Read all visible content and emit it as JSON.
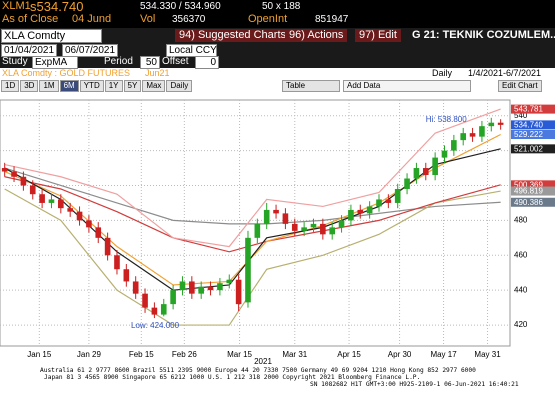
{
  "header": {
    "ticker": "XLM1",
    "last": "s534.740",
    "bid_ask": "534.330 / 534.960",
    "size": "50 x 188",
    "as_of": "As of Close",
    "date": "04 Jund",
    "vol_label": "Vol",
    "vol": "356370",
    "oi_label": "OpenInt",
    "oi": "851947"
  },
  "toolbar": {
    "security": "XLA Comdty",
    "suggested": "94) Suggested Charts",
    "actions": "96) Actions",
    "edit": "97) Edit",
    "page_title": "G 21: TEKNIK COZUMLEM...",
    "start_date": "01/04/2021",
    "end_date": "06/07/2021",
    "currency": "Local CCY",
    "study_label": "Study",
    "study": "ExpMA",
    "period_label": "Period",
    "period": "50",
    "offset_label": "Offset",
    "offset": "0",
    "chart_name": "XLA Comdty : GOLD FUTURES",
    "contract": "Jun21",
    "frequency": "Daily",
    "range": "1/4/2021-6/7/2021",
    "periods": [
      "1D",
      "3D",
      "1M",
      "6M",
      "YTD",
      "1Y",
      "5Y",
      "Max"
    ],
    "freq_button": "Daily",
    "table": "Table",
    "add_data": "Add Data",
    "edit_chart": "Edit Chart"
  },
  "chart_data": {
    "type": "candlestick",
    "up_color": "#26a426",
    "down_color": "#cc1f1f",
    "grid": true,
    "open": [
      510,
      508,
      505,
      500,
      495,
      490,
      492,
      487,
      485,
      480,
      476,
      470,
      460,
      452,
      445,
      438,
      430,
      426,
      432,
      440,
      445,
      438,
      442,
      440,
      444,
      446,
      433,
      470,
      478,
      486,
      484,
      478,
      474,
      476,
      478,
      472,
      476,
      480,
      486,
      484,
      488,
      492,
      490,
      498,
      504,
      510,
      506,
      516,
      520,
      526,
      530,
      528,
      534,
      536
    ],
    "high": [
      513,
      511,
      508,
      503,
      498,
      495,
      495,
      490,
      488,
      483,
      479,
      473,
      463,
      455,
      448,
      441,
      433,
      435,
      443,
      448,
      448,
      445,
      445,
      447,
      449,
      449,
      474,
      481,
      490,
      489,
      487,
      481,
      479,
      481,
      481,
      479,
      483,
      489,
      489,
      491,
      495,
      495,
      501,
      507,
      513,
      513,
      519,
      523,
      529,
      533,
      533,
      537,
      538.8,
      538
    ],
    "low": [
      505,
      502,
      497,
      492,
      487,
      487,
      484,
      482,
      477,
      473,
      467,
      457,
      449,
      442,
      435,
      427,
      424,
      425,
      429,
      437,
      435,
      435,
      437,
      437,
      441,
      428,
      430,
      467,
      475,
      481,
      475,
      471,
      471,
      473,
      469,
      469,
      473,
      477,
      481,
      481,
      485,
      487,
      487,
      495,
      501,
      503,
      503,
      513,
      517,
      523,
      525,
      525,
      531,
      532
    ],
    "close": [
      508,
      505,
      500,
      495,
      490,
      492,
      487,
      485,
      480,
      476,
      470,
      460,
      452,
      445,
      438,
      430,
      426,
      432,
      440,
      445,
      438,
      442,
      440,
      444,
      446,
      432,
      470,
      478,
      486,
      484,
      478,
      474,
      476,
      478,
      472,
      476,
      480,
      486,
      484,
      488,
      492,
      490,
      498,
      504,
      510,
      506,
      516,
      520,
      526,
      530,
      528,
      534,
      536,
      534.74
    ],
    "lines": [
      {
        "color": "#8c8c8c",
        "x": [
          0,
          6,
          12,
          18,
          24,
          28,
          34,
          40,
          46,
          53
        ],
        "values": [
          510,
          500,
          490,
          480,
          478,
          478,
          480,
          484,
          488,
          490.386
        ]
      },
      {
        "color": "#b8b070",
        "x": [
          0,
          6,
          12,
          18,
          24,
          28,
          34,
          40,
          46,
          53
        ],
        "values": [
          498,
          480,
          440,
          420,
          420,
          452,
          460,
          472,
          490,
          496.819
        ]
      },
      {
        "color": "#d23c3c",
        "x": [
          0,
          6,
          12,
          18,
          24,
          28,
          34,
          40,
          46,
          53
        ],
        "values": [
          505,
          498,
          485,
          470,
          462,
          468,
          474,
          480,
          490,
          500.369
        ]
      },
      {
        "color": "#f0a0a0",
        "x": [
          0,
          6,
          12,
          18,
          24,
          28,
          34,
          40,
          46,
          53
        ],
        "values": [
          512,
          505,
          495,
          470,
          465,
          492,
          488,
          496,
          530,
          543.781
        ]
      },
      {
        "color": "#f0a030",
        "x": [
          0,
          6,
          12,
          18,
          24,
          28,
          34,
          40,
          46,
          53
        ],
        "values": [
          508,
          494,
          465,
          443,
          445,
          468,
          477,
          490,
          510,
          529.222
        ]
      },
      {
        "color": "#202020",
        "x": [
          0,
          6,
          12,
          18,
          24,
          28,
          34,
          40,
          46,
          53
        ],
        "values": [
          510,
          492,
          462,
          440,
          443,
          470,
          476,
          488,
          512,
          521.002
        ]
      }
    ],
    "flags": [
      {
        "value": 543.781,
        "color": "#d23c3c"
      },
      {
        "value": 534.74,
        "label": "534.740",
        "color": "#2a5bd7"
      },
      {
        "value": 529.222,
        "color": "#4a7ae0"
      },
      {
        "value": 521.002,
        "color": "#202020"
      },
      {
        "value": 500.369,
        "color": "#d23c3c"
      },
      {
        "value": 496.819,
        "color": "#9a9a9a"
      },
      {
        "value": 490.386,
        "color": "#6a7a8a"
      }
    ],
    "ylim": [
      408,
      549
    ],
    "yticks": [
      420,
      440,
      460,
      480,
      500,
      520,
      540
    ],
    "xlim": [
      -0.5,
      54
    ],
    "xticks": [
      {
        "value": 3.7,
        "label": "Jan 15"
      },
      {
        "value": 9,
        "label": "Jan 29"
      },
      {
        "value": 14.6,
        "label": "Feb 15"
      },
      {
        "value": 19.2,
        "label": "Feb 26"
      },
      {
        "value": 25.1,
        "label": "Mar 15"
      },
      {
        "value": 31,
        "label": "Mar 31"
      },
      {
        "value": 36.8,
        "label": "Apr 15"
      },
      {
        "value": 42.2,
        "label": "Apr 30"
      },
      {
        "value": 46.9,
        "label": "May 17"
      },
      {
        "value": 51.6,
        "label": "May 31"
      }
    ],
    "year_label": "2021",
    "high_note": "Hi: 538.800",
    "low_note": "Low: 424.000"
  },
  "footer": {
    "lines": [
      "Australia 61 2 9777 8600 Brazil 5511 2395 9000 Europe 44 20 7330 7500 Germany 49 69 9204 1210 Hong Kong 852 2977 6000",
      "Japan 81 3 4565 8900      Singapore 65 6212 1000      U.S. 1 212 318 2000      Copyright 2021 Bloomberg Finance L.P.",
      "SN 1082682 H1T GMT+3:00 H925-2109-1 06-Jun-2021 16:40:21"
    ]
  }
}
